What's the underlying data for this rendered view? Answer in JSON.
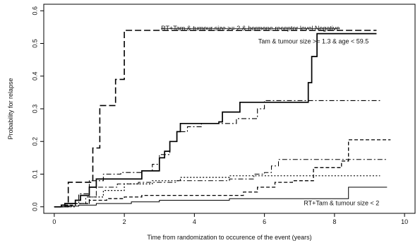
{
  "chart_data": {
    "type": "line",
    "step": true,
    "xlabel": "Time from randomization to occurence of the event (years)",
    "ylabel": "Probability for relapse",
    "xlim": [
      -0.3,
      10.3
    ],
    "ylim": [
      -0.02,
      0.62
    ],
    "x_ticks": [
      0,
      2,
      4,
      6,
      8,
      10
    ],
    "y_ticks": [
      0.0,
      0.1,
      0.2,
      0.3,
      0.4,
      0.5,
      0.6
    ],
    "x_tick_labels": [
      "0",
      "2",
      "4",
      "6",
      "8",
      "10"
    ],
    "y_tick_labels": [
      "0.0",
      "0.1",
      "0.2",
      "0.3",
      "0.4",
      "0.5",
      "0.6"
    ],
    "grid": false,
    "annotations": [
      {
        "text": "RT+Tam & tumour size >= 2 & hormone receptor level Negative",
        "x": 5.6,
        "y": 0.54,
        "strike": true
      },
      {
        "text": "Tam & tumour size >= 1.3 & age < 59.5",
        "x": 7.4,
        "y": 0.5
      },
      {
        "text": "RT+Tam & tumour size < 2",
        "x": 8.2,
        "y": 0.005
      }
    ],
    "series": [
      {
        "dash": "long-dash",
        "width": 1.6,
        "x": [
          0,
          0.2,
          0.4,
          1.05,
          1.1,
          1.3,
          1.6,
          1.75,
          2.0,
          9.2
        ],
        "y": [
          0,
          0.005,
          0.075,
          0.075,
          0.18,
          0.31,
          0.31,
          0.39,
          0.54,
          0.54
        ]
      },
      {
        "dash": "solid",
        "width": 1.7,
        "x": [
          0,
          0.2,
          0.3,
          0.6,
          0.75,
          1.0,
          1.2,
          2.4,
          2.5,
          2.7,
          3.0,
          3.15,
          3.3,
          3.5,
          3.6,
          4.2,
          4.7,
          4.8,
          5.3,
          7.2,
          7.25,
          7.35,
          7.5,
          9.2
        ],
        "y": [
          0,
          0.005,
          0.01,
          0.02,
          0.035,
          0.06,
          0.085,
          0.085,
          0.11,
          0.11,
          0.15,
          0.17,
          0.2,
          0.23,
          0.255,
          0.255,
          0.26,
          0.29,
          0.32,
          0.32,
          0.38,
          0.46,
          0.53,
          0.53
        ]
      },
      {
        "dash": "dash-dot",
        "width": 1.1,
        "x": [
          0,
          0.4,
          0.7,
          1.0,
          1.4,
          1.9,
          2.5,
          2.8,
          3.0,
          3.3,
          3.5,
          3.8,
          4.2,
          5.2,
          5.8,
          6.0,
          9.3
        ],
        "y": [
          0,
          0.01,
          0.04,
          0.08,
          0.1,
          0.105,
          0.11,
          0.13,
          0.16,
          0.2,
          0.23,
          0.245,
          0.255,
          0.27,
          0.3,
          0.325,
          0.325
        ]
      },
      {
        "dash": "short-dash",
        "width": 1.3,
        "x": [
          0,
          0.3,
          0.6,
          1.0,
          1.5,
          2.0,
          2.5,
          5.0,
          5.4,
          5.8,
          6.3,
          6.8,
          7.4,
          8.2,
          8.4,
          9.6
        ],
        "y": [
          0,
          0.005,
          0.01,
          0.02,
          0.025,
          0.03,
          0.035,
          0.035,
          0.045,
          0.06,
          0.075,
          0.08,
          0.12,
          0.14,
          0.205,
          0.205
        ]
      },
      {
        "dash": "dash-dot",
        "width": 1.0,
        "x": [
          0,
          0.5,
          0.9,
          1.2,
          1.8,
          2.4,
          3.5,
          5.0,
          5.7,
          6.0,
          6.2,
          6.4,
          7.0,
          7.6,
          9.5
        ],
        "y": [
          0,
          0.01,
          0.03,
          0.06,
          0.07,
          0.075,
          0.08,
          0.085,
          0.1,
          0.105,
          0.125,
          0.145,
          0.145,
          0.145,
          0.145
        ]
      },
      {
        "dash": "dotted",
        "width": 1.2,
        "x": [
          0,
          0.6,
          1.0,
          1.4,
          2.0,
          2.8,
          3.6,
          5.0,
          6.2,
          7.0,
          7.6,
          9.3
        ],
        "y": [
          0,
          0.01,
          0.03,
          0.05,
          0.07,
          0.08,
          0.09,
          0.095,
          0.095,
          0.095,
          0.095,
          0.095
        ]
      },
      {
        "dash": "solid",
        "width": 1.0,
        "x": [
          0,
          0.3,
          0.7,
          1.2,
          2.2,
          3.0,
          4.0,
          5.0,
          6.0,
          7.0,
          8.0,
          8.4,
          9.5
        ],
        "y": [
          0,
          0.002,
          0.005,
          0.01,
          0.015,
          0.02,
          0.02,
          0.025,
          0.025,
          0.025,
          0.025,
          0.06,
          0.06
        ]
      }
    ]
  }
}
